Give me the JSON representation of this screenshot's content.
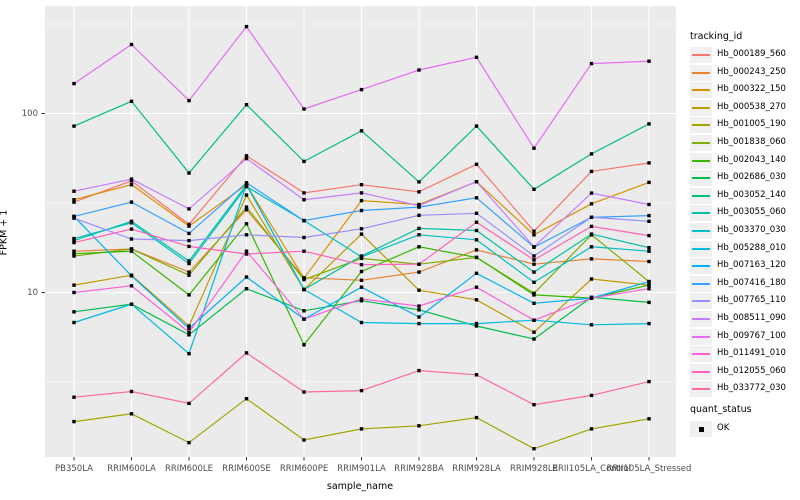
{
  "figure": {
    "background": "#FFFFFF",
    "panel_background": "#EBEBEB",
    "gridline_color": "#FFFFFF",
    "axis_text_color": "#4D4D4D",
    "tick_mark_color": "#333333",
    "point_color": "#000000"
  },
  "axes": {
    "x_title": "sample_name",
    "y_title": "FPKM + 1",
    "y_tick_labels": [
      "100",
      "10"
    ]
  },
  "legend": {
    "tracking_title": "tracking_id",
    "quant_title": "quant_status",
    "quant_items": [
      {
        "label": "OK",
        "marker": "black-square"
      }
    ]
  },
  "chart_data": {
    "type": "line",
    "title": "",
    "xlabel": "sample_name",
    "ylabel": "FPKM + 1",
    "y_scale": "log10",
    "y_major_ticks": [
      10,
      100
    ],
    "y_minor_gridlines": [
      3.162,
      31.62,
      316.23
    ],
    "ylim": [
      1.2,
      386
    ],
    "grid": true,
    "legend_position": "right",
    "point_marker": "filled-black-square",
    "x_categories": [
      "PB350LA",
      "RRIM600LA",
      "RRIM600LE",
      "RRIM600SE",
      "RRIM600PE",
      "RRIM901LA",
      "RRIM928BA",
      "RRIM928LA",
      "RRIM928LE",
      "RRII105LA_Control",
      "RRII105LA_Stressed"
    ],
    "series": [
      {
        "id": "Hb_000189_560",
        "color": "#F8766D",
        "values": [
          32,
          42,
          24,
          58,
          36,
          40,
          36.5,
          52,
          22,
          47.5,
          53
        ]
      },
      {
        "id": "Hb_000243_250",
        "color": "#EA8331",
        "values": [
          17,
          17.5,
          13,
          29,
          12.1,
          11.7,
          13,
          17.3,
          14.4,
          15.4,
          14.9
        ]
      },
      {
        "id": "Hb_000322_150",
        "color": "#D89000",
        "values": [
          33,
          40,
          23.5,
          40,
          12,
          32.6,
          31,
          41.6,
          21,
          31.3,
          41.2
        ]
      },
      {
        "id": "Hb_000538_270",
        "color": "#C09B00",
        "values": [
          11,
          12.5,
          6.5,
          35,
          10.4,
          21.2,
          10.3,
          9.1,
          6,
          11.9,
          11
        ]
      },
      {
        "id": "Hb_001005_190",
        "color": "#A3A500",
        "values": [
          1.9,
          2.1,
          1.45,
          2.55,
          1.5,
          1.73,
          1.8,
          2.0,
          1.34,
          1.73,
          1.97
        ]
      },
      {
        "id": "Hb_001838_060",
        "color": "#7CAE00",
        "values": [
          16,
          17.5,
          12.5,
          30,
          11.8,
          15.5,
          14.4,
          15.7,
          9.9,
          21,
          11.5
        ]
      },
      {
        "id": "Hb_002043_140",
        "color": "#39B600",
        "values": [
          16.5,
          17,
          9.7,
          24.2,
          5.1,
          13.1,
          18,
          15.7,
          9.7,
          9.3,
          11
        ]
      },
      {
        "id": "Hb_002686_030",
        "color": "#00BB4E",
        "values": [
          7.8,
          8.6,
          5.8,
          10.5,
          7.9,
          9,
          8,
          6.5,
          5.5,
          9.4,
          8.8
        ]
      },
      {
        "id": "Hb_003052_140",
        "color": "#00BF7D",
        "values": [
          85,
          117,
          46.5,
          112,
          54,
          80,
          41.5,
          85,
          37.7,
          59.5,
          87.5
        ]
      },
      {
        "id": "Hb_003055_060",
        "color": "#00C1A3",
        "values": [
          19.5,
          25,
          15,
          40,
          10.4,
          16,
          22.8,
          22.2,
          13,
          21.2,
          17.8
        ]
      },
      {
        "id": "Hb_003370_030",
        "color": "#00BFC4",
        "values": [
          20,
          24.5,
          14.5,
          39,
          25.2,
          15.8,
          21,
          19.7,
          11.4,
          18,
          17
        ]
      },
      {
        "id": "Hb_005288_010",
        "color": "#00BAE0",
        "values": [
          6.8,
          8.6,
          4.55,
          40,
          10.4,
          6.8,
          6.7,
          6.7,
          7,
          6.6,
          6.7
        ]
      },
      {
        "id": "Hb_007163_120",
        "color": "#00B0F6",
        "values": [
          26.6,
          12.4,
          6.3,
          12.2,
          7.1,
          10.7,
          7.3,
          12.8,
          8.7,
          9.3,
          11.5
        ]
      },
      {
        "id": "Hb_007416_180",
        "color": "#35A2FF",
        "values": [
          26.6,
          32,
          21.4,
          41,
          25.2,
          28.7,
          30,
          33.8,
          17.9,
          26.3,
          26.9
        ]
      },
      {
        "id": "Hb_007765_110",
        "color": "#9590FF",
        "values": [
          26,
          19.9,
          19.5,
          21,
          20.3,
          22.7,
          27,
          27.7,
          16,
          26.3,
          25
        ]
      },
      {
        "id": "Hb_008511_090",
        "color": "#C77CFF",
        "values": [
          36.8,
          43,
          29.3,
          56,
          33,
          36,
          30.6,
          41.6,
          18,
          35.9,
          31
        ]
      },
      {
        "id": "Hb_009767_100",
        "color": "#E76BF3",
        "values": [
          147,
          243,
          118,
          306,
          106,
          136,
          175,
          206,
          64,
          190,
          196
        ]
      },
      {
        "id": "Hb_011491_010",
        "color": "#FA62DB",
        "values": [
          10,
          10.9,
          6,
          17,
          7.1,
          9.2,
          8.4,
          10.7,
          7,
          9.3,
          10.5
        ]
      },
      {
        "id": "Hb_012055_060",
        "color": "#FF62BC",
        "values": [
          19,
          22.6,
          18.1,
          16.4,
          17,
          14.3,
          14.4,
          24.7,
          15.2,
          23.4,
          20.8
        ]
      },
      {
        "id": "Hb_033772_030",
        "color": "#FF6A98",
        "values": [
          2.6,
          2.8,
          2.4,
          4.6,
          2.78,
          2.83,
          3.66,
          3.47,
          2.36,
          2.66,
          3.18
        ]
      }
    ]
  }
}
